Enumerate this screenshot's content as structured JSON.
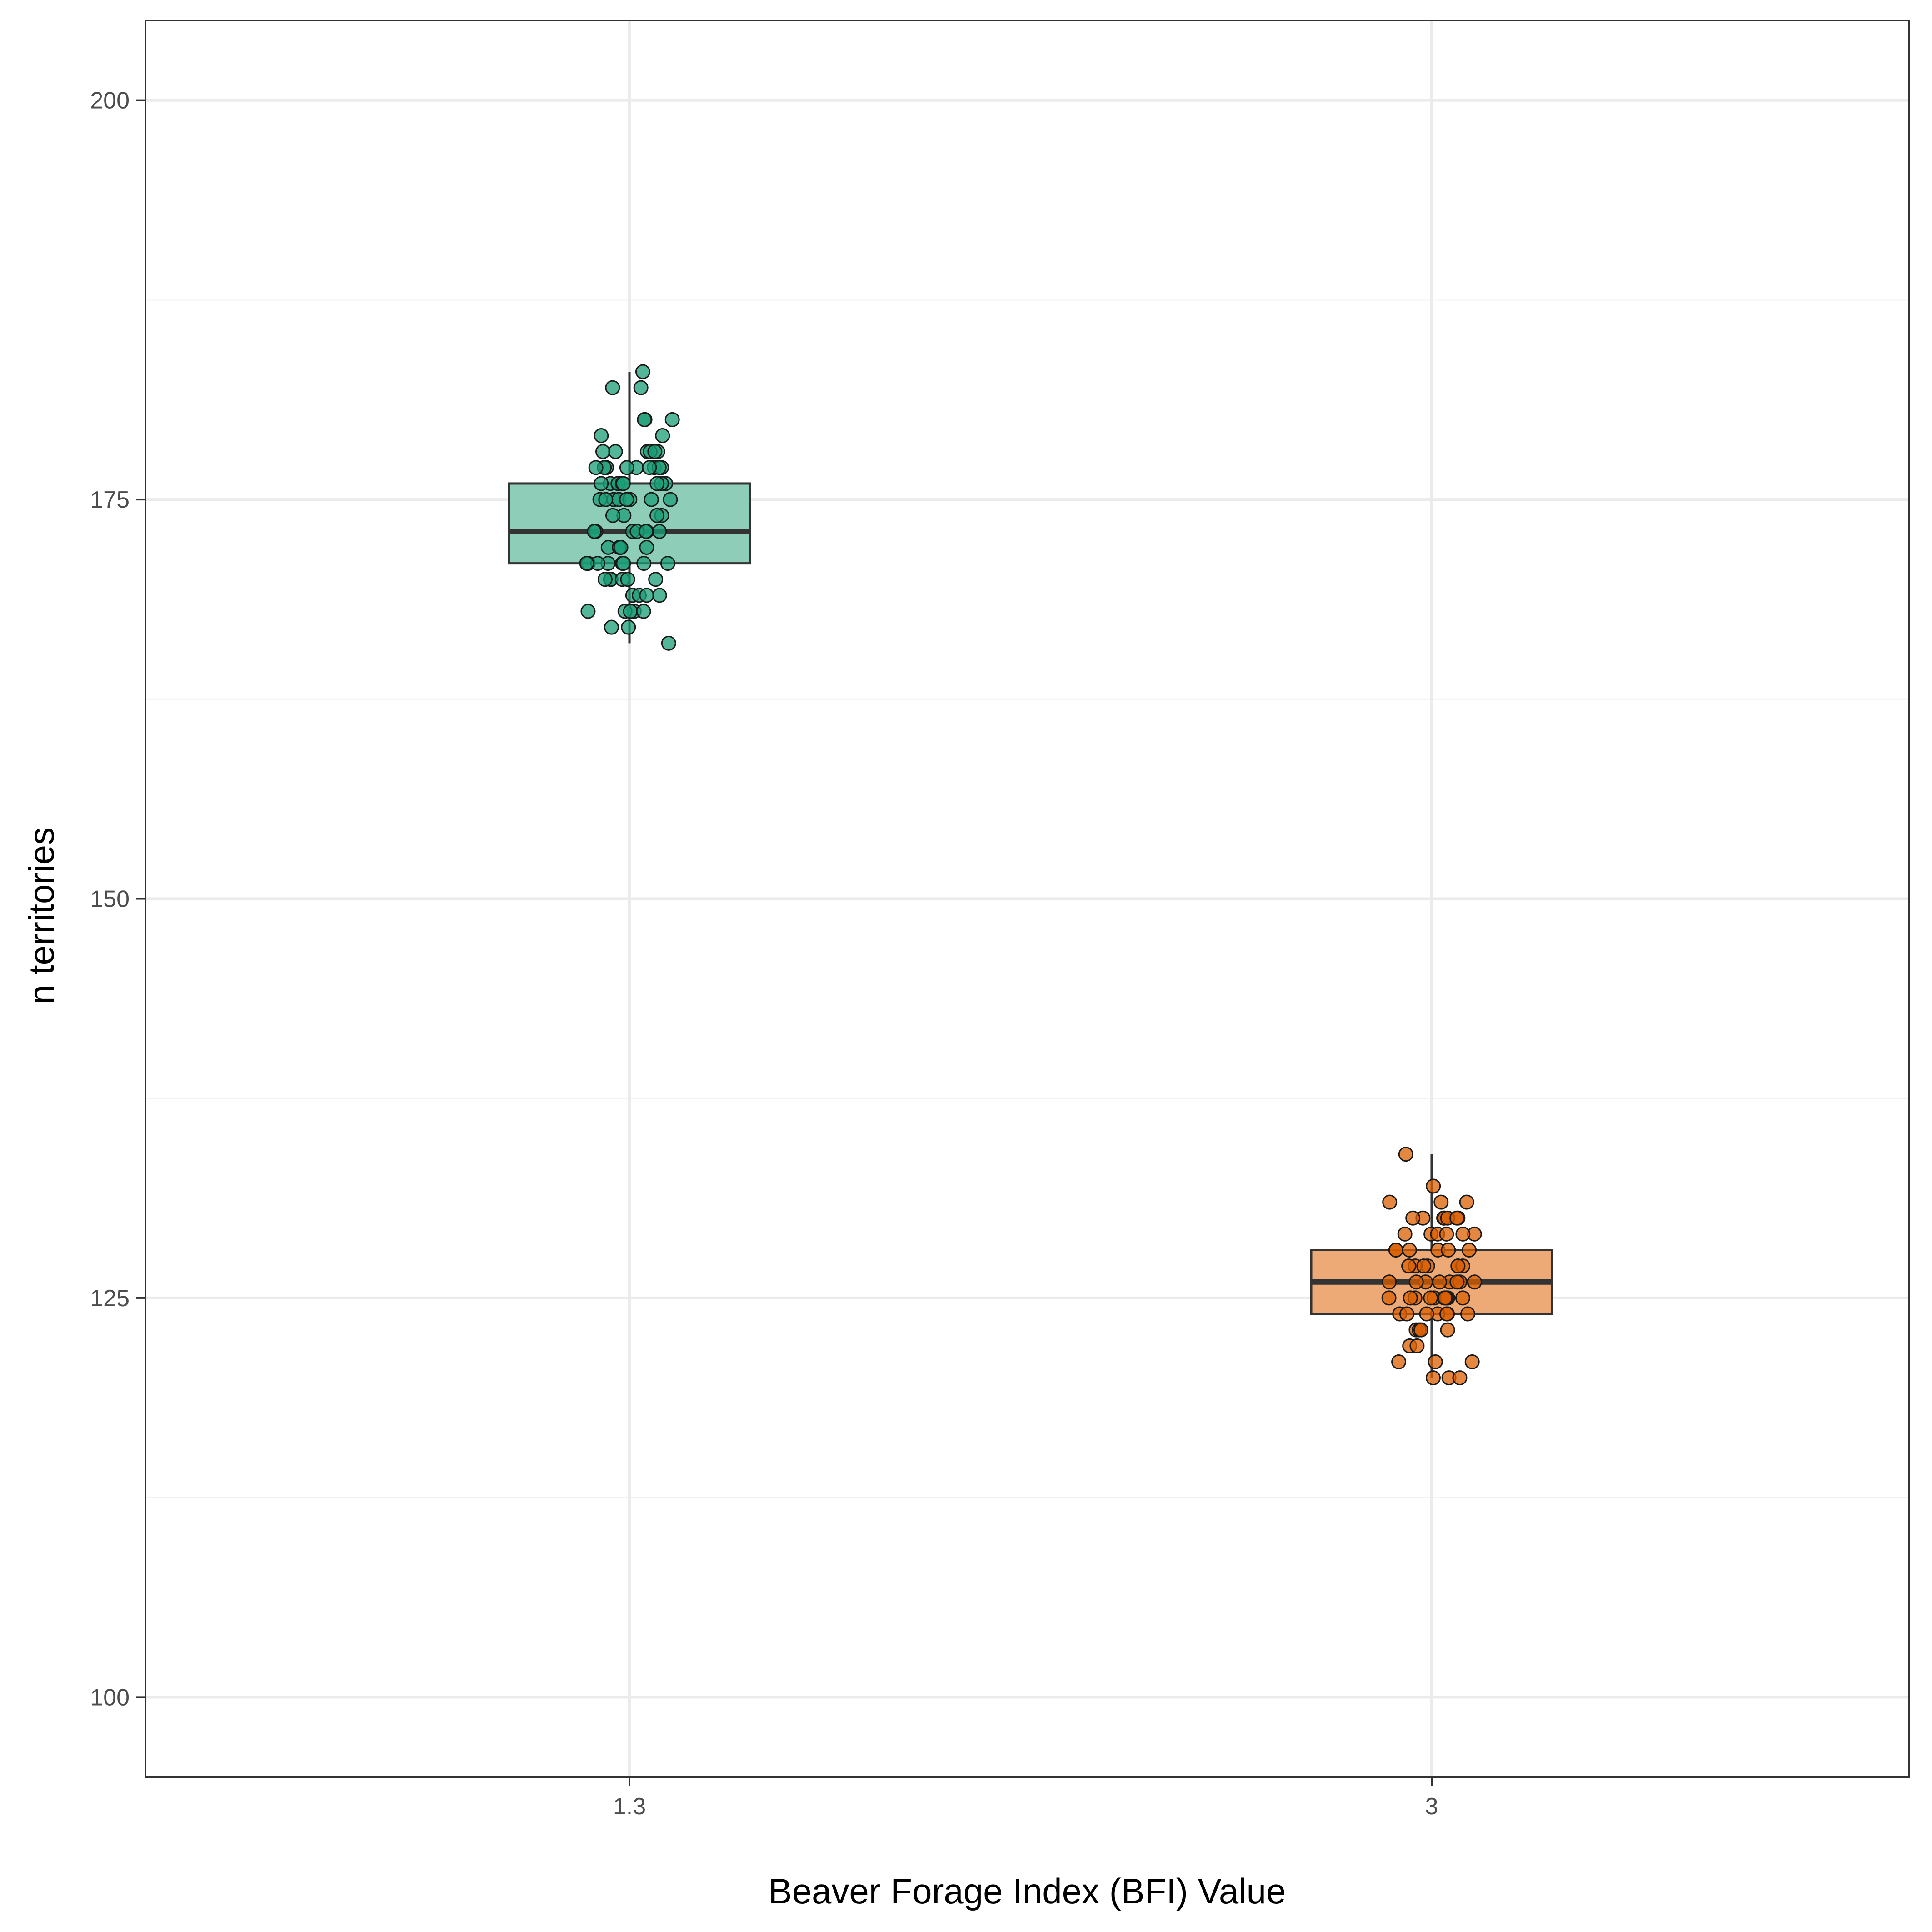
{
  "chart_data": {
    "type": "boxplot",
    "xlabel": "Beaver Forage Index (BFI) Value",
    "ylabel": "n territories",
    "categories": [
      "1.3",
      "3"
    ],
    "ylim": [
      95,
      205
    ],
    "yticks": [
      100,
      125,
      150,
      175,
      200
    ],
    "grid": true,
    "legend": "none",
    "groups": [
      {
        "category": "1.3",
        "box": {
          "min": 166,
          "q1": 171,
          "median": 173,
          "q3": 176,
          "max": 183
        },
        "box_fill": "#8ecdb7",
        "point_color": "#1b9e77",
        "points": [
          183,
          182,
          182,
          180,
          180,
          180,
          179,
          179,
          178,
          178,
          178,
          178,
          178,
          178,
          177,
          177,
          177,
          177,
          177,
          177,
          177,
          177,
          177,
          176,
          176,
          176,
          176,
          176,
          176,
          176,
          176,
          176,
          175,
          175,
          175,
          175,
          175,
          175,
          175,
          175,
          174,
          174,
          174,
          174,
          173,
          173,
          173,
          173,
          173,
          173,
          173,
          172,
          172,
          172,
          172,
          172,
          171,
          171,
          171,
          171,
          171,
          171,
          171,
          171,
          170,
          170,
          170,
          170,
          170,
          170,
          169,
          169,
          169,
          169,
          168,
          168,
          168,
          168,
          168,
          167,
          167,
          166
        ]
      },
      {
        "category": "3",
        "box": {
          "min": 120,
          "q1": 124,
          "median": 126,
          "q3": 128,
          "max": 134
        },
        "box_fill": "#eeaa76",
        "point_color": "#d95f02",
        "points": [
          134,
          132,
          131,
          131,
          131,
          130,
          130,
          130,
          130,
          130,
          130,
          130,
          129,
          129,
          129,
          129,
          129,
          129,
          128,
          128,
          128,
          128,
          128,
          128,
          127,
          127,
          127,
          127,
          127,
          127,
          127,
          126,
          126,
          126,
          126,
          126,
          126,
          126,
          126,
          125,
          125,
          125,
          125,
          125,
          125,
          125,
          125,
          125,
          125,
          124,
          124,
          124,
          124,
          124,
          124,
          124,
          123,
          123,
          123,
          123,
          122,
          122,
          121,
          121,
          121,
          120,
          120,
          120
        ]
      }
    ]
  }
}
